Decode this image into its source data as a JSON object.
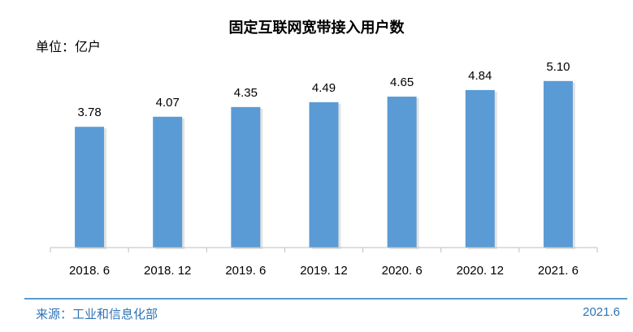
{
  "title": "固定互联网宽带接入用户数",
  "unit_label": "单位：亿户",
  "footer": {
    "source": "来源：工业和信息化部",
    "date": "2021.6"
  },
  "colors": {
    "bar": "#5b9bd5",
    "axis": "#bfbfbf",
    "footer": "#2e74b5"
  },
  "chart_data": {
    "type": "bar",
    "title": "固定互联网宽带接入用户数",
    "ylabel": "单位：亿户",
    "categories": [
      "2018. 6",
      "2018. 12",
      "2019. 6",
      "2019. 12",
      "2020. 6",
      "2020. 12",
      "2021. 6"
    ],
    "values": [
      3.78,
      4.07,
      4.35,
      4.49,
      4.65,
      4.84,
      5.1
    ],
    "value_labels": [
      "3.78",
      "4.07",
      "4.35",
      "4.49",
      "4.65",
      "4.84",
      "5.10"
    ],
    "grid": false,
    "legend": "none"
  }
}
